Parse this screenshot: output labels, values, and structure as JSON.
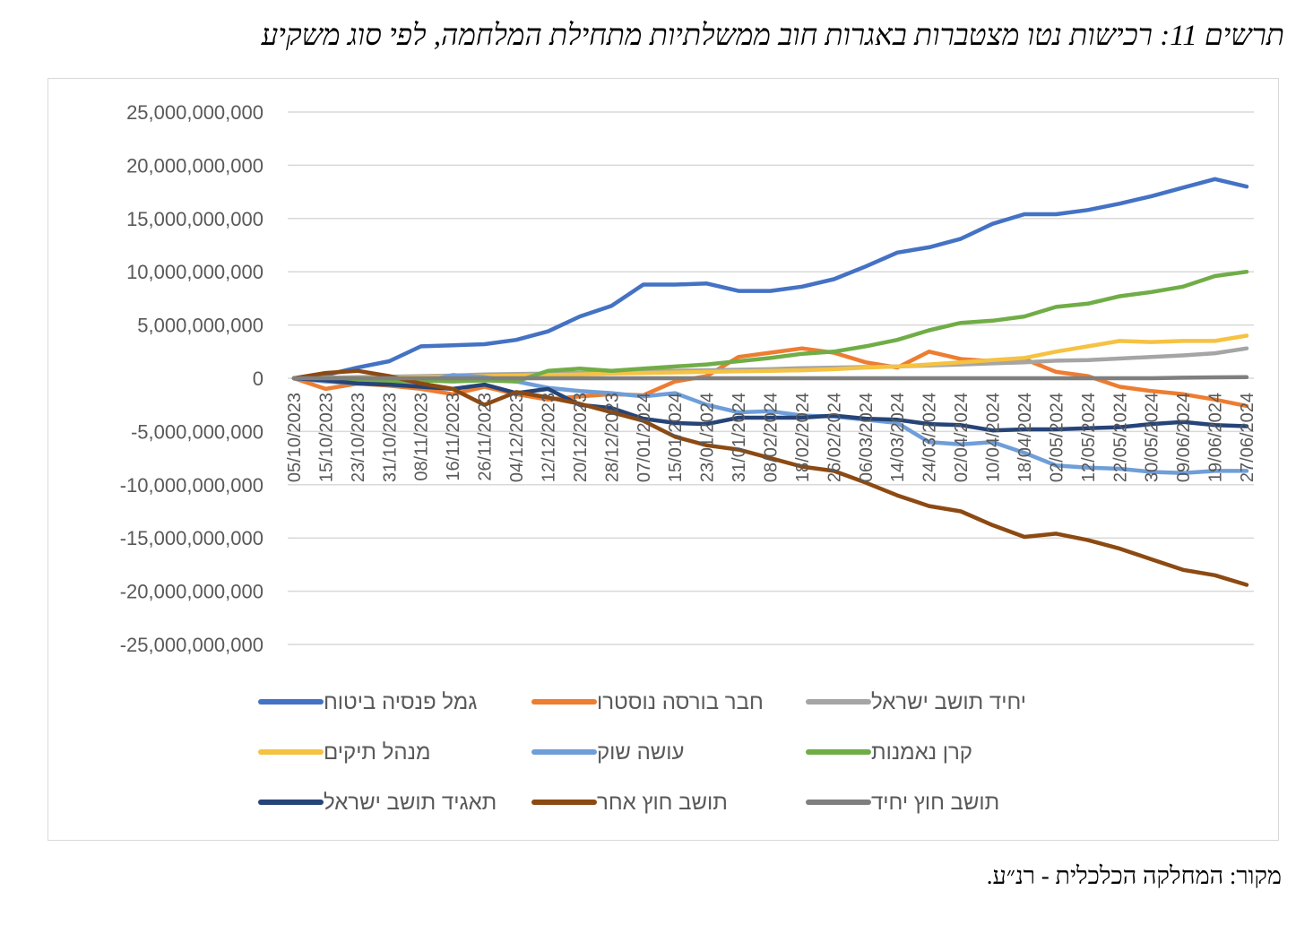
{
  "title": "תרשים 11: רכישות נטו מצטברות באגרות חוב ממשלתיות מתחילת המלחמה, לפי סוג משקיע",
  "source": "מקור: המחלקה הכלכלית - רנ״ע.",
  "chart_data": {
    "type": "line",
    "title": "תרשים 11: רכישות נטו מצטברות באגרות חוב ממשלתיות מתחילת המלחמה, לפי סוג משקיע",
    "xlabel": "",
    "ylabel": "",
    "ylim": [
      -25000000000,
      25000000000
    ],
    "y_ticks": [
      25000000000,
      20000000000,
      15000000000,
      10000000000,
      5000000000,
      0,
      -5000000000,
      -10000000000,
      -15000000000,
      -20000000000,
      -25000000000
    ],
    "y_tick_labels": [
      "25,000,000,000",
      "20,000,000,000",
      "15,000,000,000",
      "10,000,000,000",
      "5,000,000,000",
      "0",
      "-5,000,000,000",
      "-10,000,000,000",
      "-15,000,000,000",
      "-20,000,000,000",
      "-25,000,000,000"
    ],
    "grid": true,
    "legend_position": "bottom",
    "x": [
      "05/10/2023",
      "15/10/2023",
      "23/10/2023",
      "31/10/2023",
      "08/11/2023",
      "16/11/2023",
      "26/11/2023",
      "04/12/2023",
      "12/12/2023",
      "20/12/2023",
      "28/12/2023",
      "07/01/2024",
      "15/01/2024",
      "23/01/2024",
      "31/01/2024",
      "08/02/2024",
      "18/02/2024",
      "26/02/2024",
      "06/03/2024",
      "14/03/2024",
      "24/03/2024",
      "02/04/2024",
      "10/04/2024",
      "18/04/2024",
      "02/05/2024",
      "12/05/2024",
      "22/05/2024",
      "30/05/2024",
      "09/06/2024",
      "19/06/2024",
      "27/06/2024"
    ],
    "series": [
      {
        "name": "גמל פנסיה ביטוח",
        "color": "#4472c4",
        "values": [
          0,
          300000000,
          1000000000,
          1600000000,
          3000000000,
          3100000000,
          3200000000,
          3600000000,
          4400000000,
          5800000000,
          6800000000,
          8800000000,
          8800000000,
          8900000000,
          8200000000,
          8200000000,
          8600000000,
          9300000000,
          10500000000,
          11800000000,
          12300000000,
          13100000000,
          14500000000,
          15400000000,
          15400000000,
          15800000000,
          16400000000,
          17100000000,
          17900000000,
          18700000000,
          18000000000
        ]
      },
      {
        "name": "חבר בורסה נוסטרו",
        "color": "#ed7d31",
        "values": [
          0,
          -1000000000,
          -500000000,
          -700000000,
          -1000000000,
          -1500000000,
          -800000000,
          -1500000000,
          -2000000000,
          -1700000000,
          -1500000000,
          -1600000000,
          -300000000,
          200000000,
          2000000000,
          2400000000,
          2800000000,
          2400000000,
          1500000000,
          1000000000,
          2500000000,
          1800000000,
          1600000000,
          1800000000,
          600000000,
          200000000,
          -800000000,
          -1200000000,
          -1500000000,
          -2000000000,
          -2600000000
        ]
      },
      {
        "name": "יחיד תושב ישראל",
        "color": "#a5a5a5",
        "values": [
          0,
          50000000,
          100000000,
          150000000,
          200000000,
          250000000,
          350000000,
          400000000,
          450000000,
          500000000,
          550000000,
          650000000,
          700000000,
          750000000,
          800000000,
          850000000,
          950000000,
          1000000000,
          1050000000,
          1100000000,
          1200000000,
          1300000000,
          1400000000,
          1500000000,
          1650000000,
          1700000000,
          1850000000,
          2000000000,
          2150000000,
          2350000000,
          2800000000
        ]
      },
      {
        "name": "מנהל תיקים",
        "color": "#f5c242",
        "values": [
          0,
          0,
          0,
          50000000,
          100000000,
          150000000,
          200000000,
          250000000,
          300000000,
          350000000,
          450000000,
          500000000,
          550000000,
          600000000,
          650000000,
          700000000,
          750000000,
          850000000,
          1000000000,
          1100000000,
          1300000000,
          1500000000,
          1700000000,
          1900000000,
          2500000000,
          3000000000,
          3500000000,
          3400000000,
          3500000000,
          3500000000,
          4000000000
        ]
      },
      {
        "name": "עושה שוק",
        "color": "#6f9ed9",
        "values": [
          0,
          -300000000,
          -500000000,
          -600000000,
          -400000000,
          300000000,
          100000000,
          -300000000,
          -900000000,
          -1200000000,
          -1400000000,
          -1700000000,
          -1400000000,
          -2500000000,
          -3200000000,
          -3100000000,
          -3500000000,
          -3600000000,
          -3900000000,
          -4200000000,
          -6000000000,
          -6200000000,
          -6000000000,
          -7000000000,
          -8200000000,
          -8400000000,
          -8500000000,
          -8800000000,
          -8900000000,
          -8700000000,
          -8700000000
        ]
      },
      {
        "name": "קרן נאמנות",
        "color": "#70ad47",
        "values": [
          0,
          0,
          -200000000,
          -300000000,
          -200000000,
          -300000000,
          -200000000,
          -300000000,
          700000000,
          900000000,
          700000000,
          900000000,
          1100000000,
          1300000000,
          1600000000,
          1900000000,
          2300000000,
          2500000000,
          3000000000,
          3600000000,
          4500000000,
          5200000000,
          5400000000,
          5800000000,
          6700000000,
          7000000000,
          7700000000,
          8100000000,
          8600000000,
          9600000000,
          10000000000
        ]
      },
      {
        "name": "תאגיד תושב ישראל",
        "color": "#264478",
        "values": [
          0,
          -200000000,
          -500000000,
          -600000000,
          -800000000,
          -1000000000,
          -600000000,
          -1400000000,
          -1000000000,
          -2500000000,
          -2800000000,
          -3800000000,
          -4200000000,
          -4300000000,
          -3700000000,
          -3700000000,
          -3700000000,
          -3500000000,
          -3800000000,
          -3900000000,
          -4300000000,
          -4400000000,
          -4900000000,
          -4800000000,
          -4800000000,
          -4700000000,
          -4600000000,
          -4300000000,
          -4100000000,
          -4400000000,
          -4500000000
        ]
      },
      {
        "name": "תושב חוץ אחר",
        "color": "#8c4a12",
        "values": [
          0,
          500000000,
          700000000,
          200000000,
          -500000000,
          -1000000000,
          -2500000000,
          -1300000000,
          -1800000000,
          -2400000000,
          -3200000000,
          -4000000000,
          -5500000000,
          -6300000000,
          -6700000000,
          -7500000000,
          -8300000000,
          -8700000000,
          -9800000000,
          -11000000000,
          -12000000000,
          -12500000000,
          -13800000000,
          -14900000000,
          -14600000000,
          -15200000000,
          -16000000000,
          -17000000000,
          -18000000000,
          -18500000000,
          -19400000000
        ]
      },
      {
        "name": "תושב חוץ יחיד",
        "color": "#7f7f7f",
        "values": [
          0,
          0,
          0,
          0,
          0,
          0,
          0,
          0,
          0,
          0,
          0,
          0,
          0,
          0,
          0,
          0,
          0,
          0,
          0,
          0,
          0,
          0,
          0,
          0,
          0,
          0,
          0,
          0,
          50000000,
          80000000,
          100000000
        ]
      }
    ]
  }
}
